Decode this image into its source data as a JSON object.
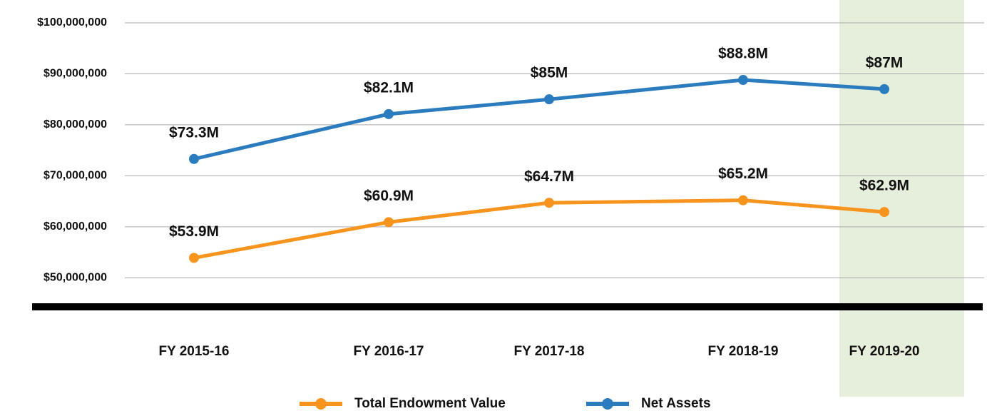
{
  "chart_data": {
    "type": "line",
    "categories": [
      "FY 2015-16",
      "FY 2016-17",
      "FY 2017-18",
      "FY 2018-19",
      "FY 2019-20"
    ],
    "series": [
      {
        "name": "Total Endowment Value",
        "color": "#f7941d",
        "values": [
          53900000,
          60900000,
          64700000,
          65200000,
          62900000
        ],
        "value_labels": [
          "$53.9M",
          "$60.9M",
          "$64.7M",
          "$65.2M",
          "$62.9M"
        ]
      },
      {
        "name": "Net Assets",
        "color": "#2b7bbf",
        "values": [
          73300000,
          82100000,
          85000000,
          88800000,
          87000000
        ],
        "value_labels": [
          "$73.3M",
          "$82.1M",
          "$85M",
          "$88.8M",
          "$87M"
        ]
      }
    ],
    "ylim": [
      44300000,
      100000000
    ],
    "yticks": [
      {
        "value": 50000000,
        "label": "$50,000,000"
      },
      {
        "value": 60000000,
        "label": "$60,000,000"
      },
      {
        "value": 70000000,
        "label": "$70,000,000"
      },
      {
        "value": 80000000,
        "label": "$80,000,000"
      },
      {
        "value": 90000000,
        "label": "$90,000,000"
      },
      {
        "value": 100000000,
        "label": "$100,000,000"
      }
    ],
    "grid": true
  }
}
